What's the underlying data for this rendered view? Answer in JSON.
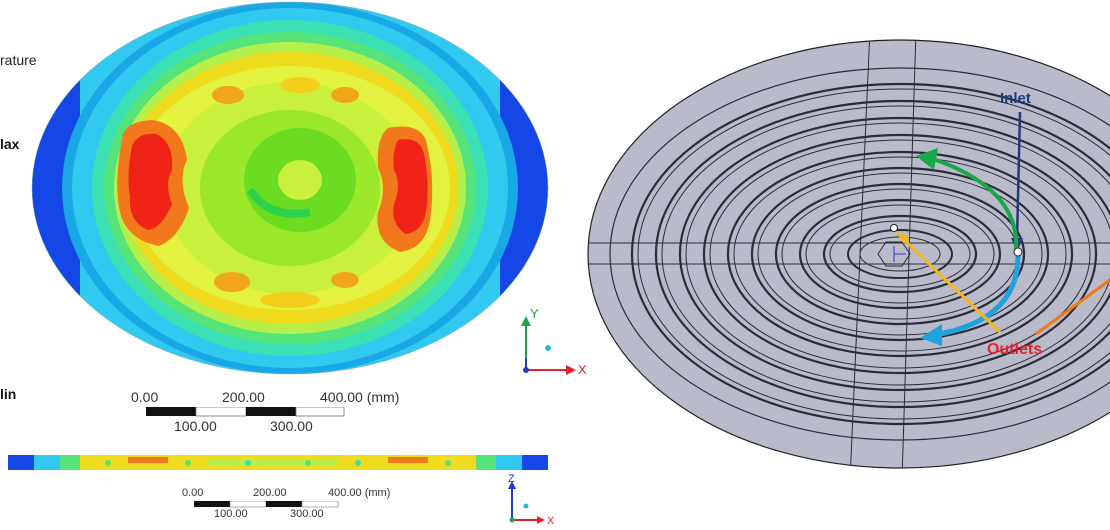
{
  "left_panel": {
    "legend": {
      "title_fragment": "rature",
      "max_label": "lax",
      "min_label": "lin"
    },
    "scale_top": {
      "ticks_upper": [
        "0.00",
        "200.00",
        "400.00 (mm)"
      ],
      "ticks_lower": [
        "100.00",
        "300.00"
      ]
    },
    "scale_bottom": {
      "ticks_upper": [
        "0.00",
        "200.00",
        "400.00 (mm)"
      ],
      "ticks_lower": [
        "100.00",
        "300.00"
      ]
    },
    "triad_top": {
      "y": "Y",
      "x": "X"
    },
    "triad_bottom": {
      "z": "Z",
      "x": "X"
    }
  },
  "right_panel": {
    "labels": {
      "inlet": "Inlet",
      "outlets": "Outlets"
    },
    "colors": {
      "inlet_text": "#1f3a78",
      "outlets_text": "#e8202a",
      "green_arrow": "#18a84a",
      "blue_arrow": "#1ea3e0",
      "yellow_line": "#f3b81f",
      "orange_line": "#ee7a1c",
      "plate": "#b9bbcb"
    }
  }
}
